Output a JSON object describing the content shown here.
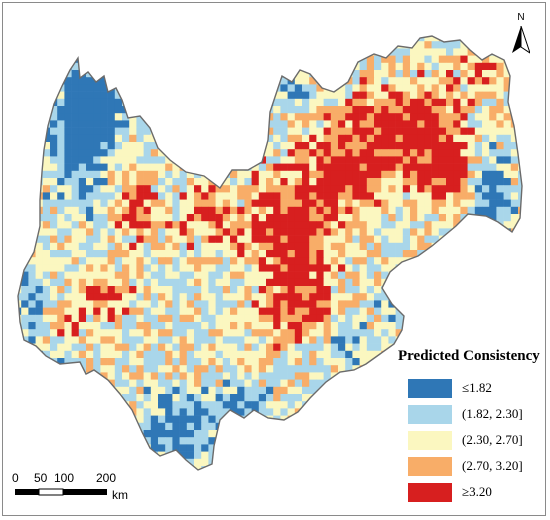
{
  "map": {
    "colors": {
      "outline": "#6b6b6b",
      "background": "#ffffff"
    }
  },
  "north_arrow": {
    "letter": "N"
  },
  "legend": {
    "title": "Predicted Consistency",
    "items": [
      {
        "label": "≤1.82",
        "color": "#2f77b6"
      },
      {
        "label": "(1.82, 2.30]",
        "color": "#a9d6ea"
      },
      {
        "label": "(2.30, 2.70]",
        "color": "#fbf7c0"
      },
      {
        "label": "(2.70, 3.20]",
        "color": "#f8ad68"
      },
      {
        "label": "≥3.20",
        "color": "#d71f1f"
      }
    ]
  },
  "scale_bar": {
    "ticks": [
      "0",
      "50",
      "100",
      "200"
    ],
    "unit": "km"
  }
}
